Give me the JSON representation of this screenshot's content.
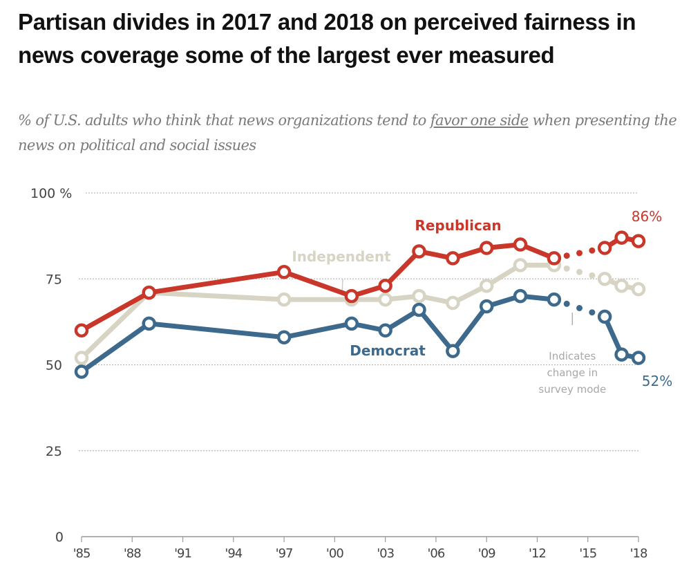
{
  "chart_data": {
    "type": "line",
    "title": "Partisan divides in 2017 and 2018 on perceived fairness in news coverage some of the largest ever measured",
    "subtitle_parts": [
      "% of U.S. adults who think that news organizations tend to ",
      "favor one side",
      " when presenting the news on political and social issues"
    ],
    "xlabel": "",
    "ylabel": "",
    "ylim": [
      0,
      100
    ],
    "xlim": [
      1985,
      2018
    ],
    "y_ticks": [
      0,
      25,
      50,
      75,
      100
    ],
    "y_tick_labels": [
      "0",
      "25",
      "50",
      "75",
      "100 %"
    ],
    "x_ticks": [
      1985,
      1988,
      1991,
      1994,
      1997,
      2000,
      2003,
      2006,
      2009,
      2012,
      2015,
      2018
    ],
    "x_tick_labels": [
      "'85",
      "'88",
      "'91",
      "'94",
      "'97",
      "'00",
      "'03",
      "'06",
      "'09",
      "'12",
      "'15",
      "'18"
    ],
    "grid": true,
    "survey_mode_change_year": 2014,
    "survey_mode_note": [
      "Indicates",
      "change in",
      "survey mode"
    ],
    "x": [
      1985,
      1989,
      1997,
      2001,
      2003,
      2005,
      2007,
      2009,
      2011,
      2013,
      2016,
      2017,
      2018
    ],
    "series": [
      {
        "name": "Independent",
        "color": "#d8d4c4",
        "label_color": "#d8d4c4",
        "values": [
          52,
          71,
          69,
          69,
          69,
          70,
          68,
          73,
          79,
          79,
          75,
          73,
          72
        ]
      },
      {
        "name": "Republican",
        "color": "#c8372a",
        "label_color": "#c8372a",
        "values": [
          60,
          71,
          77,
          70,
          73,
          83,
          81,
          84,
          85,
          81,
          84,
          87,
          86
        ],
        "end_label": "86%"
      },
      {
        "name": "Democrat",
        "color": "#3d6a8c",
        "label_color": "#3d6a8c",
        "values": [
          48,
          62,
          58,
          62,
          60,
          66,
          54,
          67,
          70,
          69,
          64,
          53,
          52
        ],
        "end_label": "52%"
      }
    ]
  }
}
